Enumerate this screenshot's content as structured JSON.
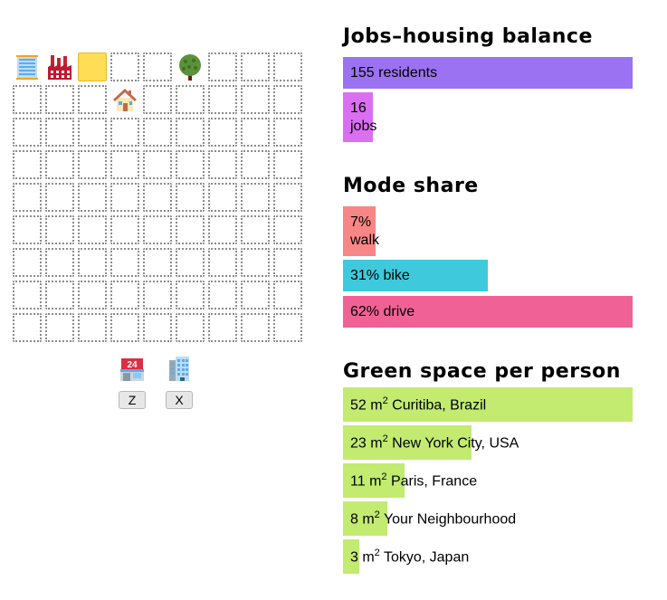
{
  "grid": {
    "rows": 9,
    "cols": 9,
    "occupied": [
      {
        "row": 0,
        "col": 0,
        "icon": "office-building-icon"
      },
      {
        "row": 0,
        "col": 1,
        "icon": "factory-icon"
      },
      {
        "row": 0,
        "col": 2,
        "icon": "selected-yellow-cell"
      },
      {
        "row": 0,
        "col": 5,
        "icon": "tree-icon"
      },
      {
        "row": 1,
        "col": 3,
        "icon": "house-icon"
      }
    ]
  },
  "palette": [
    {
      "icon": "convenience-store-icon",
      "key": "Z"
    },
    {
      "icon": "office-building-icon",
      "key": "X"
    }
  ],
  "jobs_housing": {
    "title": "Jobs–housing balance",
    "residents": {
      "value": 155,
      "label": "155 residents",
      "color": "#9b72f2"
    },
    "jobs": {
      "value": 16,
      "num": "16",
      "label": "jobs",
      "color": "#da6ff2"
    }
  },
  "mode_share": {
    "title": "Mode share",
    "items": [
      {
        "value": 7,
        "label": "7%",
        "sub": "walk",
        "color": "#f98686",
        "stacked": true
      },
      {
        "value": 31,
        "label": "31% bike",
        "color": "#3fc9dc",
        "stacked": false
      },
      {
        "value": 62,
        "label": "62% drive",
        "color": "#f06295",
        "stacked": false
      }
    ]
  },
  "green_space": {
    "title": "Green space per person",
    "color": "#c2eb70",
    "unit": "m",
    "unit_sup": "2",
    "items": [
      {
        "value": 52,
        "num": "52",
        "place": "Curitiba, Brazil"
      },
      {
        "value": 23,
        "num": "23",
        "place": "New York City, USA"
      },
      {
        "value": 11,
        "num": "11",
        "place": "Paris, France"
      },
      {
        "value": 8,
        "num": "8",
        "place": "Your Neighbourhood"
      },
      {
        "value": 3,
        "num": "3",
        "place": "Tokyo, Japan"
      }
    ]
  }
}
